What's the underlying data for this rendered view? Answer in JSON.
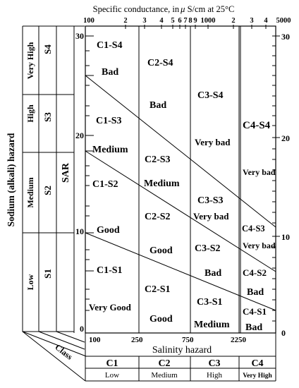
{
  "top_axis": {
    "title": "Specific conductance, in",
    "title_mu": "μ",
    "title_tail": "S/cm at 25°C",
    "tick_labels": [
      "100",
      "2",
      "3",
      "4",
      "5",
      "6",
      "7",
      "8",
      "9",
      "1000",
      "2",
      "3",
      "4",
      "5000"
    ]
  },
  "left_axis": {
    "title": "Sodium (alkali) hazard",
    "sar_label": "SAR",
    "hazard_levels": [
      "Very High",
      "High",
      "Medium",
      "Low"
    ],
    "s_classes": [
      "S4",
      "S3",
      "S2",
      "S1"
    ]
  },
  "sar_ticks_left": [
    "30",
    "20",
    "10",
    "0"
  ],
  "sar_ticks_right": [
    "30",
    "20",
    "10",
    "0"
  ],
  "bottom_axis": {
    "tick_labels": [
      "100",
      "250",
      "750",
      "2250"
    ],
    "title": "Salinity hazard"
  },
  "class_table": {
    "header": "Class",
    "classes": [
      "C1",
      "C2",
      "C3",
      "C4"
    ],
    "levels": [
      "Low",
      "Medium",
      "High",
      "Very High"
    ]
  },
  "zones": {
    "c1s4": "C1-S4",
    "c1s4_q": "Bad",
    "c1s3": "C1-S3",
    "c1s3_q": "Medium",
    "c1s2": "C1-S2",
    "c1s2_q": "Good",
    "c1s1": "C1-S1",
    "c1s1_q": "Very Good",
    "c2s4": "C2-S4",
    "c2s4_q": "Bad",
    "c2s3": "C2-S3",
    "c2s3_q": "Medium",
    "c2s2": "C2-S2",
    "c2s2_q": "Good",
    "c2s1": "C2-S1",
    "c2s1_q": "Good",
    "c3s4": "C3-S4",
    "c3s4_q": "Very bad",
    "c3s3": "C3-S3",
    "c3s3_q": "Very bad",
    "c3s2": "C3-S2",
    "c3s2_q": "Bad",
    "c3s1": "C3-S1",
    "c3s1_q": "Medium",
    "c4s4": "C4-S4",
    "c4s4_q": "Very bad",
    "c4s3": "C4-S3",
    "c4s3_q": "Very bad",
    "c4s2": "C4-S2",
    "c4s2_q": "Bad",
    "c4s1": "C4-S1",
    "c4s1_q": "Bad"
  }
}
